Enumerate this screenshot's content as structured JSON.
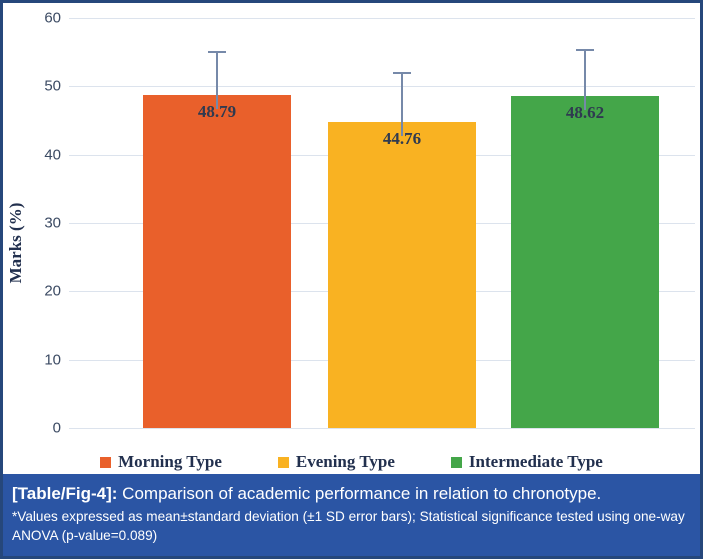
{
  "chart_data": {
    "type": "bar",
    "title": "",
    "categories": [
      "Morning Type",
      "Evening Type",
      "Intermediate Type"
    ],
    "values": [
      48.79,
      44.76,
      48.62
    ],
    "value_labels": [
      "48.79",
      "44.76",
      "48.62"
    ],
    "error_sd": [
      6.4,
      7.3,
      6.8
    ],
    "error_bars": "+1 SD, top cap only",
    "bar_colors": [
      "#E9602B",
      "#F9B222",
      "#44A649"
    ],
    "xlabel": "",
    "ylabel": "Marks (%)",
    "ylim": [
      0,
      60
    ],
    "ytick_step": 10,
    "yticks": [
      0,
      10,
      20,
      30,
      40,
      50,
      60
    ],
    "grid": true,
    "gridline_color": "#DCE3ED",
    "error_bar_color": "#7689A9",
    "legend_position": "bottom",
    "legend": [
      "Morning Type",
      "Evening Type",
      "Intermediate Type"
    ]
  },
  "caption": {
    "label": "[Table/Fig-4]:",
    "title": " Comparison of academic performance in relation to chronotype.",
    "note": "*Values expressed as mean±standard deviation (±1 SD error bars); Statistical significance tested using one-way ANOVA (p-value=0.089)",
    "background_color": "#2B55A4",
    "text_color": "#FFFFFF"
  },
  "colors": {
    "figure_border": "#26477B",
    "axis_text": "#3B4A63",
    "serif_text": "#22304E"
  }
}
